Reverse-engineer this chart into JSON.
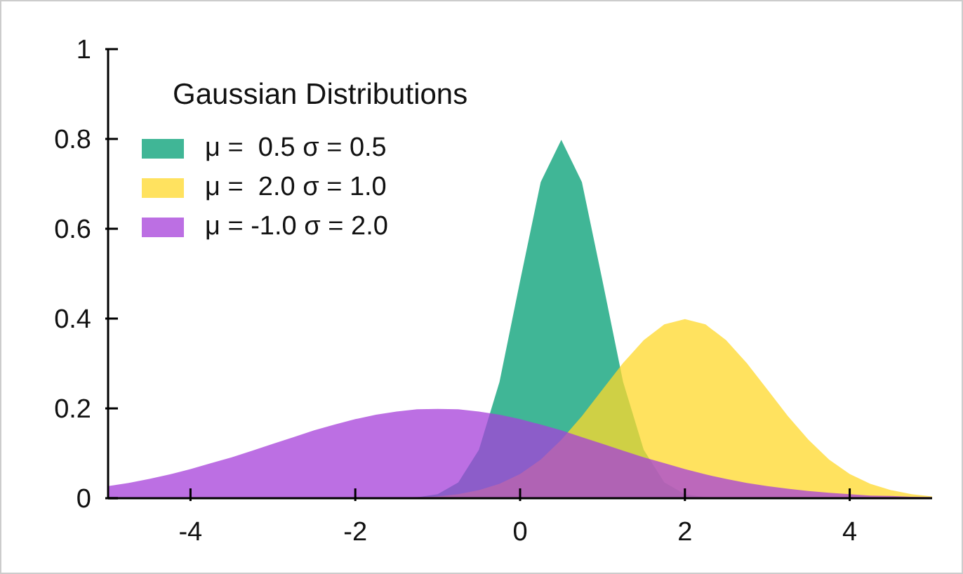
{
  "chart_data": {
    "type": "area",
    "legend_title": "Gaussian Distributions",
    "legend": "top left",
    "x": [
      -5,
      -4.75,
      -4.5,
      -4.25,
      -4,
      -3.75,
      -3.5,
      -3.25,
      -3,
      -2.75,
      -2.5,
      -2.25,
      -2,
      -1.75,
      -1.5,
      -1.25,
      -1,
      -0.75,
      -0.5,
      -0.25,
      0,
      0.25,
      0.5,
      0.75,
      1,
      1.25,
      1.5,
      1.75,
      2,
      2.25,
      2.5,
      2.75,
      3,
      3.25,
      3.5,
      3.75,
      4,
      4.25,
      4.5,
      4.75,
      5
    ],
    "series": [
      {
        "name": "μ =  0.5 σ = 0.5",
        "color": "#009e73",
        "values": [
          0,
          0,
          0,
          0,
          0,
          0,
          0,
          0,
          0,
          0,
          0,
          0,
          0,
          0,
          0,
          0.002,
          0.009,
          0.035,
          0.108,
          0.259,
          0.484,
          0.704,
          0.798,
          0.704,
          0.484,
          0.259,
          0.108,
          0.035,
          0.009,
          0.002,
          0,
          0,
          0,
          0,
          0,
          0,
          0,
          0,
          0,
          0,
          0
        ]
      },
      {
        "name": "μ =  2.0 σ = 1.0",
        "color": "#ffd82a",
        "values": [
          0,
          0,
          0,
          0,
          0,
          0,
          0,
          0,
          0,
          0,
          0,
          0,
          0,
          0,
          0.001,
          0.002,
          0.004,
          0.009,
          0.018,
          0.032,
          0.054,
          0.086,
          0.13,
          0.183,
          0.242,
          0.301,
          0.352,
          0.387,
          0.399,
          0.387,
          0.352,
          0.301,
          0.242,
          0.183,
          0.13,
          0.086,
          0.054,
          0.032,
          0.018,
          0.009,
          0.004
        ]
      },
      {
        "name": "μ = -1.0 σ = 2.0",
        "color": "#a53fd9",
        "values": [
          0.027,
          0.034,
          0.043,
          0.053,
          0.065,
          0.078,
          0.091,
          0.106,
          0.121,
          0.136,
          0.151,
          0.164,
          0.176,
          0.186,
          0.193,
          0.198,
          0.199,
          0.198,
          0.193,
          0.186,
          0.176,
          0.164,
          0.151,
          0.136,
          0.121,
          0.106,
          0.091,
          0.078,
          0.065,
          0.053,
          0.043,
          0.034,
          0.027,
          0.021,
          0.016,
          0.012,
          0.009,
          0.006,
          0.005,
          0.003,
          0.002
        ]
      }
    ],
    "xlim": [
      -5,
      5
    ],
    "xticks": [
      -4,
      -2,
      0,
      2,
      4
    ],
    "ylim": [
      0,
      1
    ],
    "yticks": [
      0,
      0.2,
      0.4,
      0.6,
      0.8,
      1
    ]
  }
}
